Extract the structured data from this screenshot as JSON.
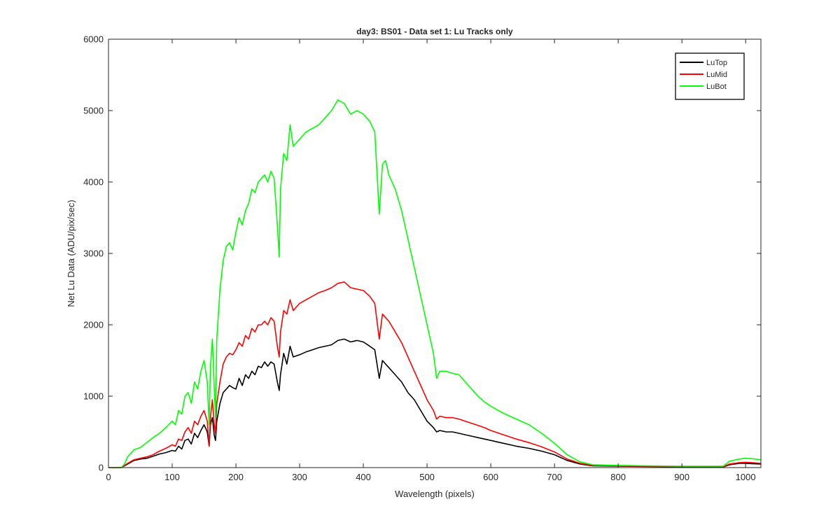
{
  "chart_data": {
    "type": "line",
    "title": "day3: BS01 - Data set 1: Lu Tracks only",
    "xlabel": "Wavelength (pixels)",
    "ylabel": "Net Lu Data (ADU/pix/sec)",
    "xlim": [
      0,
      1024
    ],
    "ylim": [
      0,
      6000
    ],
    "xticks": [
      0,
      100,
      200,
      300,
      400,
      500,
      600,
      700,
      800,
      900,
      1000
    ],
    "yticks": [
      0,
      1000,
      2000,
      3000,
      4000,
      5000,
      6000
    ],
    "x_tick_labels": [
      "0",
      "100",
      "200",
      "300",
      "400",
      "500",
      "600",
      "700",
      "800",
      "900",
      "1000"
    ],
    "y_tick_labels": [
      "0",
      "1000",
      "2000",
      "3000",
      "4000",
      "5000",
      "6000"
    ],
    "grid": false,
    "legend_position": "top-right",
    "series": [
      {
        "name": "LuTop",
        "color": "#000000",
        "points": [
          [
            0,
            0
          ],
          [
            20,
            0
          ],
          [
            30,
            50
          ],
          [
            40,
            100
          ],
          [
            50,
            120
          ],
          [
            60,
            130
          ],
          [
            70,
            160
          ],
          [
            80,
            190
          ],
          [
            90,
            210
          ],
          [
            100,
            240
          ],
          [
            105,
            230
          ],
          [
            110,
            300
          ],
          [
            115,
            260
          ],
          [
            120,
            380
          ],
          [
            125,
            400
          ],
          [
            130,
            330
          ],
          [
            135,
            480
          ],
          [
            140,
            420
          ],
          [
            145,
            520
          ],
          [
            150,
            600
          ],
          [
            155,
            500
          ],
          [
            158,
            300
          ],
          [
            160,
            600
          ],
          [
            163,
            700
          ],
          [
            166,
            450
          ],
          [
            168,
            380
          ],
          [
            170,
            650
          ],
          [
            175,
            900
          ],
          [
            180,
            1050
          ],
          [
            185,
            1100
          ],
          [
            190,
            1150
          ],
          [
            195,
            1120
          ],
          [
            200,
            1100
          ],
          [
            205,
            1250
          ],
          [
            210,
            1150
          ],
          [
            215,
            1300
          ],
          [
            220,
            1250
          ],
          [
            225,
            1350
          ],
          [
            230,
            1300
          ],
          [
            235,
            1420
          ],
          [
            240,
            1400
          ],
          [
            245,
            1480
          ],
          [
            250,
            1420
          ],
          [
            255,
            1480
          ],
          [
            260,
            1450
          ],
          [
            265,
            1200
          ],
          [
            268,
            1080
          ],
          [
            270,
            1300
          ],
          [
            275,
            1600
          ],
          [
            280,
            1450
          ],
          [
            285,
            1700
          ],
          [
            290,
            1550
          ],
          [
            300,
            1580
          ],
          [
            310,
            1620
          ],
          [
            320,
            1650
          ],
          [
            330,
            1680
          ],
          [
            340,
            1700
          ],
          [
            350,
            1720
          ],
          [
            360,
            1780
          ],
          [
            370,
            1800
          ],
          [
            380,
            1760
          ],
          [
            390,
            1780
          ],
          [
            400,
            1760
          ],
          [
            410,
            1700
          ],
          [
            418,
            1650
          ],
          [
            425,
            1250
          ],
          [
            430,
            1500
          ],
          [
            435,
            1450
          ],
          [
            440,
            1400
          ],
          [
            450,
            1300
          ],
          [
            460,
            1200
          ],
          [
            470,
            1050
          ],
          [
            480,
            950
          ],
          [
            490,
            800
          ],
          [
            500,
            650
          ],
          [
            510,
            560
          ],
          [
            515,
            500
          ],
          [
            520,
            520
          ],
          [
            530,
            500
          ],
          [
            540,
            500
          ],
          [
            550,
            480
          ],
          [
            560,
            460
          ],
          [
            570,
            440
          ],
          [
            580,
            420
          ],
          [
            590,
            400
          ],
          [
            600,
            380
          ],
          [
            620,
            340
          ],
          [
            640,
            300
          ],
          [
            660,
            270
          ],
          [
            680,
            230
          ],
          [
            700,
            180
          ],
          [
            720,
            100
          ],
          [
            740,
            50
          ],
          [
            760,
            25
          ],
          [
            800,
            20
          ],
          [
            850,
            15
          ],
          [
            900,
            10
          ],
          [
            950,
            10
          ],
          [
            965,
            10
          ],
          [
            975,
            40
          ],
          [
            990,
            60
          ],
          [
            1000,
            60
          ],
          [
            1010,
            55
          ],
          [
            1024,
            50
          ]
        ]
      },
      {
        "name": "LuMid",
        "color": "#ff0000",
        "points": [
          [
            0,
            0
          ],
          [
            20,
            0
          ],
          [
            30,
            60
          ],
          [
            40,
            110
          ],
          [
            50,
            130
          ],
          [
            60,
            150
          ],
          [
            70,
            180
          ],
          [
            80,
            230
          ],
          [
            90,
            270
          ],
          [
            100,
            320
          ],
          [
            105,
            300
          ],
          [
            110,
            400
          ],
          [
            115,
            380
          ],
          [
            120,
            500
          ],
          [
            125,
            560
          ],
          [
            130,
            480
          ],
          [
            135,
            650
          ],
          [
            140,
            600
          ],
          [
            145,
            720
          ],
          [
            150,
            800
          ],
          [
            155,
            650
          ],
          [
            158,
            300
          ],
          [
            160,
            700
          ],
          [
            163,
            950
          ],
          [
            166,
            600
          ],
          [
            168,
            480
          ],
          [
            170,
            900
          ],
          [
            175,
            1200
          ],
          [
            180,
            1450
          ],
          [
            185,
            1550
          ],
          [
            190,
            1600
          ],
          [
            195,
            1580
          ],
          [
            200,
            1650
          ],
          [
            205,
            1750
          ],
          [
            210,
            1700
          ],
          [
            215,
            1850
          ],
          [
            220,
            1800
          ],
          [
            225,
            1950
          ],
          [
            230,
            1900
          ],
          [
            235,
            2000
          ],
          [
            240,
            2000
          ],
          [
            245,
            2050
          ],
          [
            250,
            2000
          ],
          [
            255,
            2100
          ],
          [
            260,
            2050
          ],
          [
            265,
            1700
          ],
          [
            268,
            1550
          ],
          [
            270,
            1900
          ],
          [
            275,
            2200
          ],
          [
            280,
            2150
          ],
          [
            285,
            2350
          ],
          [
            290,
            2200
          ],
          [
            300,
            2300
          ],
          [
            310,
            2350
          ],
          [
            320,
            2400
          ],
          [
            330,
            2450
          ],
          [
            340,
            2480
          ],
          [
            350,
            2520
          ],
          [
            360,
            2580
          ],
          [
            370,
            2600
          ],
          [
            380,
            2520
          ],
          [
            390,
            2500
          ],
          [
            400,
            2480
          ],
          [
            410,
            2400
          ],
          [
            418,
            2300
          ],
          [
            425,
            1800
          ],
          [
            430,
            2150
          ],
          [
            435,
            2100
          ],
          [
            440,
            2050
          ],
          [
            450,
            1900
          ],
          [
            460,
            1750
          ],
          [
            470,
            1550
          ],
          [
            480,
            1350
          ],
          [
            490,
            1150
          ],
          [
            500,
            950
          ],
          [
            510,
            800
          ],
          [
            515,
            680
          ],
          [
            520,
            720
          ],
          [
            530,
            700
          ],
          [
            540,
            700
          ],
          [
            550,
            680
          ],
          [
            560,
            650
          ],
          [
            570,
            620
          ],
          [
            580,
            590
          ],
          [
            590,
            560
          ],
          [
            600,
            520
          ],
          [
            620,
            460
          ],
          [
            640,
            400
          ],
          [
            660,
            350
          ],
          [
            680,
            290
          ],
          [
            700,
            220
          ],
          [
            720,
            120
          ],
          [
            740,
            60
          ],
          [
            760,
            30
          ],
          [
            800,
            25
          ],
          [
            850,
            20
          ],
          [
            900,
            15
          ],
          [
            950,
            15
          ],
          [
            965,
            15
          ],
          [
            975,
            50
          ],
          [
            990,
            70
          ],
          [
            1000,
            75
          ],
          [
            1010,
            70
          ],
          [
            1024,
            60
          ]
        ]
      },
      {
        "name": "LuBot",
        "color": "#00ff00",
        "points": [
          [
            0,
            0
          ],
          [
            20,
            0
          ],
          [
            25,
            50
          ],
          [
            30,
            150
          ],
          [
            40,
            250
          ],
          [
            50,
            280
          ],
          [
            60,
            350
          ],
          [
            70,
            420
          ],
          [
            80,
            480
          ],
          [
            90,
            560
          ],
          [
            100,
            650
          ],
          [
            105,
            600
          ],
          [
            110,
            800
          ],
          [
            115,
            750
          ],
          [
            120,
            1000
          ],
          [
            125,
            1050
          ],
          [
            130,
            900
          ],
          [
            135,
            1200
          ],
          [
            140,
            1100
          ],
          [
            145,
            1350
          ],
          [
            150,
            1500
          ],
          [
            155,
            1200
          ],
          [
            158,
            600
          ],
          [
            160,
            1400
          ],
          [
            163,
            1800
          ],
          [
            166,
            1100
          ],
          [
            168,
            700
          ],
          [
            170,
            1800
          ],
          [
            175,
            2500
          ],
          [
            180,
            2900
          ],
          [
            185,
            3100
          ],
          [
            190,
            3150
          ],
          [
            195,
            3050
          ],
          [
            200,
            3300
          ],
          [
            205,
            3500
          ],
          [
            210,
            3400
          ],
          [
            215,
            3600
          ],
          [
            220,
            3700
          ],
          [
            225,
            3900
          ],
          [
            230,
            3850
          ],
          [
            235,
            4000
          ],
          [
            240,
            4050
          ],
          [
            245,
            4100
          ],
          [
            250,
            4000
          ],
          [
            255,
            4150
          ],
          [
            260,
            4050
          ],
          [
            265,
            3400
          ],
          [
            268,
            2950
          ],
          [
            270,
            3900
          ],
          [
            275,
            4400
          ],
          [
            280,
            4300
          ],
          [
            285,
            4800
          ],
          [
            290,
            4500
          ],
          [
            300,
            4600
          ],
          [
            310,
            4700
          ],
          [
            320,
            4750
          ],
          [
            330,
            4800
          ],
          [
            340,
            4900
          ],
          [
            350,
            5000
          ],
          [
            360,
            5150
          ],
          [
            370,
            5100
          ],
          [
            380,
            4950
          ],
          [
            390,
            5000
          ],
          [
            400,
            4950
          ],
          [
            410,
            4850
          ],
          [
            418,
            4700
          ],
          [
            425,
            3550
          ],
          [
            430,
            4250
          ],
          [
            435,
            4300
          ],
          [
            440,
            4100
          ],
          [
            450,
            3900
          ],
          [
            460,
            3600
          ],
          [
            470,
            3200
          ],
          [
            480,
            2800
          ],
          [
            490,
            2400
          ],
          [
            500,
            2000
          ],
          [
            510,
            1600
          ],
          [
            515,
            1250
          ],
          [
            520,
            1350
          ],
          [
            530,
            1350
          ],
          [
            540,
            1320
          ],
          [
            550,
            1300
          ],
          [
            560,
            1200
          ],
          [
            570,
            1100
          ],
          [
            580,
            1000
          ],
          [
            590,
            920
          ],
          [
            600,
            860
          ],
          [
            620,
            760
          ],
          [
            640,
            680
          ],
          [
            660,
            600
          ],
          [
            680,
            480
          ],
          [
            700,
            340
          ],
          [
            720,
            180
          ],
          [
            740,
            80
          ],
          [
            760,
            40
          ],
          [
            800,
            30
          ],
          [
            850,
            25
          ],
          [
            900,
            20
          ],
          [
            950,
            20
          ],
          [
            965,
            20
          ],
          [
            975,
            90
          ],
          [
            990,
            120
          ],
          [
            1000,
            130
          ],
          [
            1010,
            125
          ],
          [
            1024,
            110
          ]
        ]
      }
    ]
  }
}
